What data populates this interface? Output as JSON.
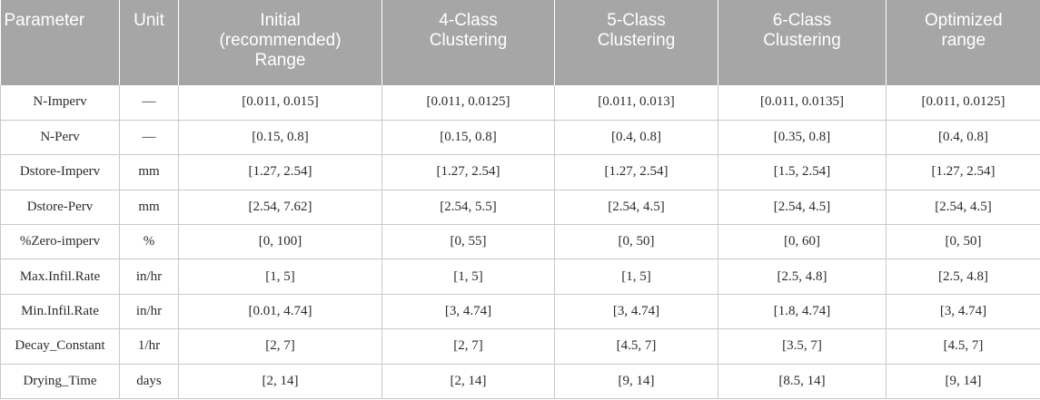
{
  "table": {
    "headers": [
      "Parameter",
      "Unit",
      "Initial (recommended) Range",
      "4-Class Clustering",
      "5-Class Clustering",
      "6-Class Clustering",
      "Optimized range"
    ],
    "header_lines": [
      [
        "Parameter"
      ],
      [
        "Unit"
      ],
      [
        "Initial",
        "(recommended)",
        "Range"
      ],
      [
        "4-Class",
        "Clustering"
      ],
      [
        "5-Class",
        "Clustering"
      ],
      [
        "6-Class",
        "Clustering"
      ],
      [
        "Optimized",
        "range"
      ]
    ],
    "rows": [
      [
        "N-Imperv",
        "—",
        "[0.011, 0.015]",
        "[0.011, 0.0125]",
        "[0.011, 0.013]",
        "[0.011, 0.0135]",
        "[0.011, 0.0125]"
      ],
      [
        "N-Perv",
        "—",
        "[0.15, 0.8]",
        "[0.15, 0.8]",
        "[0.4, 0.8]",
        "[0.35, 0.8]",
        "[0.4, 0.8]"
      ],
      [
        "Dstore-Imperv",
        "mm",
        "[1.27, 2.54]",
        "[1.27, 2.54]",
        "[1.27, 2.54]",
        "[1.5, 2.54]",
        "[1.27, 2.54]"
      ],
      [
        "Dstore-Perv",
        "mm",
        "[2.54, 7.62]",
        "[2.54, 5.5]",
        "[2.54, 4.5]",
        "[2.54, 4.5]",
        "[2.54, 4.5]"
      ],
      [
        "%Zero-imperv",
        "%",
        "[0, 100]",
        "[0, 55]",
        "[0, 50]",
        "[0, 60]",
        "[0, 50]"
      ],
      [
        "Max.Infil.Rate",
        "in/hr",
        "[1, 5]",
        "[1, 5]",
        "[1, 5]",
        "[2.5, 4.8]",
        "[2.5, 4.8]"
      ],
      [
        "Min.Infil.Rate",
        "in/hr",
        "[0.01, 4.74]",
        "[3, 4.74]",
        "[3, 4.74]",
        "[1.8, 4.74]",
        "[3, 4.74]"
      ],
      [
        "Decay_Constant",
        "1/hr",
        "[2, 7]",
        "[2, 7]",
        "[4.5, 7]",
        "[3.5, 7]",
        "[4.5, 7]"
      ],
      [
        "Drying_Time",
        "days",
        "[2, 14]",
        "[2, 14]",
        "[9, 14]",
        "[8.5, 14]",
        "[9, 14]"
      ]
    ]
  }
}
